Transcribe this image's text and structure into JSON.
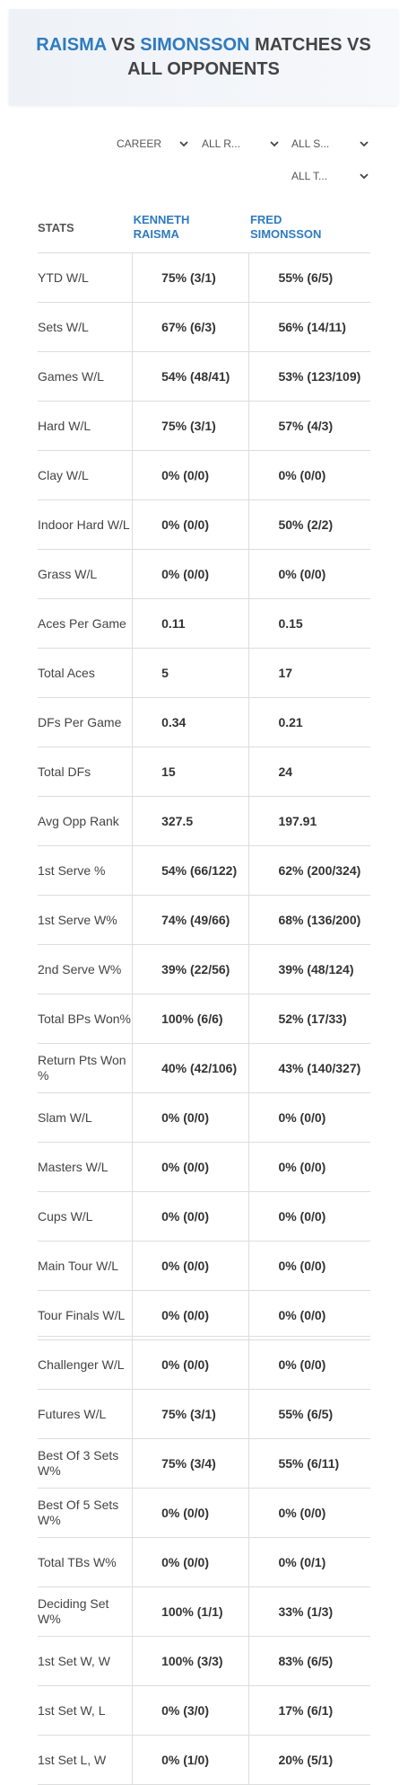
{
  "header": {
    "title": [
      {
        "text": "RAISMA",
        "accent": true
      },
      {
        "text": "VS",
        "accent": false
      },
      {
        "text": "SIMONSSON",
        "accent": true
      },
      {
        "text": "MATCHES VS ALL OPPONENTS",
        "accent": false
      }
    ]
  },
  "filters": [
    "CAREER",
    "ALL R...",
    "ALL S...",
    "ALL T..."
  ],
  "table": {
    "columns": [
      "STATS",
      "KENNETH RAISMA",
      "FRED SIMONSSON"
    ],
    "rows": [
      [
        "YTD W/L",
        "75% (3/1)",
        "55% (6/5)"
      ],
      [
        "Sets W/L",
        "67% (6/3)",
        "56% (14/11)"
      ],
      [
        "Games W/L",
        "54% (48/41)",
        "53% (123/109)"
      ],
      [
        "Hard W/L",
        "75% (3/1)",
        "57% (4/3)"
      ],
      [
        "Clay W/L",
        "0% (0/0)",
        "0% (0/0)"
      ],
      [
        "Indoor Hard W/L",
        "0% (0/0)",
        "50% (2/2)"
      ],
      [
        "Grass W/L",
        "0% (0/0)",
        "0% (0/0)"
      ],
      [
        "Aces Per Game",
        "0.11",
        "0.15"
      ],
      [
        "Total Aces",
        "5",
        "17"
      ],
      [
        "DFs Per Game",
        "0.34",
        "0.21"
      ],
      [
        "Total DFs",
        "15",
        "24"
      ],
      [
        "Avg Opp Rank",
        "327.5",
        "197.91"
      ],
      [
        "1st Serve %",
        "54% (66/122)",
        "62% (200/324)"
      ],
      [
        "1st Serve W%",
        "74% (49/66)",
        "68% (136/200)"
      ],
      [
        "2nd Serve W%",
        "39% (22/56)",
        "39% (48/124)"
      ],
      [
        "Total BPs Won%",
        "100% (6/6)",
        "52% (17/33)"
      ],
      [
        "Return Pts Won %",
        "40% (42/106)",
        "43% (140/327)"
      ],
      [
        "Slam W/L",
        "0% (0/0)",
        "0% (0/0)"
      ],
      [
        "Masters W/L",
        "0% (0/0)",
        "0% (0/0)"
      ],
      [
        "Cups W/L",
        "0% (0/0)",
        "0% (0/0)"
      ],
      [
        "Main Tour W/L",
        "0% (0/0)",
        "0% (0/0)"
      ],
      [
        "Tour Finals W/L",
        "0% (0/0)",
        "0% (0/0)"
      ],
      [
        "Challenger W/L",
        "0% (0/0)",
        "0% (0/0)"
      ],
      [
        "Futures W/L",
        "75% (3/1)",
        "55% (6/5)"
      ],
      [
        "Best Of 3 Sets W%",
        "75% (3/4)",
        "55% (6/11)"
      ],
      [
        "Best Of 5 Sets W%",
        "0% (0/0)",
        "0% (0/0)"
      ],
      [
        "Total TBs W%",
        "0% (0/0)",
        "0% (0/1)"
      ],
      [
        "Deciding Set W%",
        "100% (1/1)",
        "33% (1/3)"
      ],
      [
        "1st Set W, W",
        "100% (3/3)",
        "83% (6/5)"
      ],
      [
        "1st Set W, L",
        "0% (3/0)",
        "17% (6/1)"
      ],
      [
        "1st Set L, W",
        "0% (1/0)",
        "20% (5/1)"
      ]
    ]
  }
}
